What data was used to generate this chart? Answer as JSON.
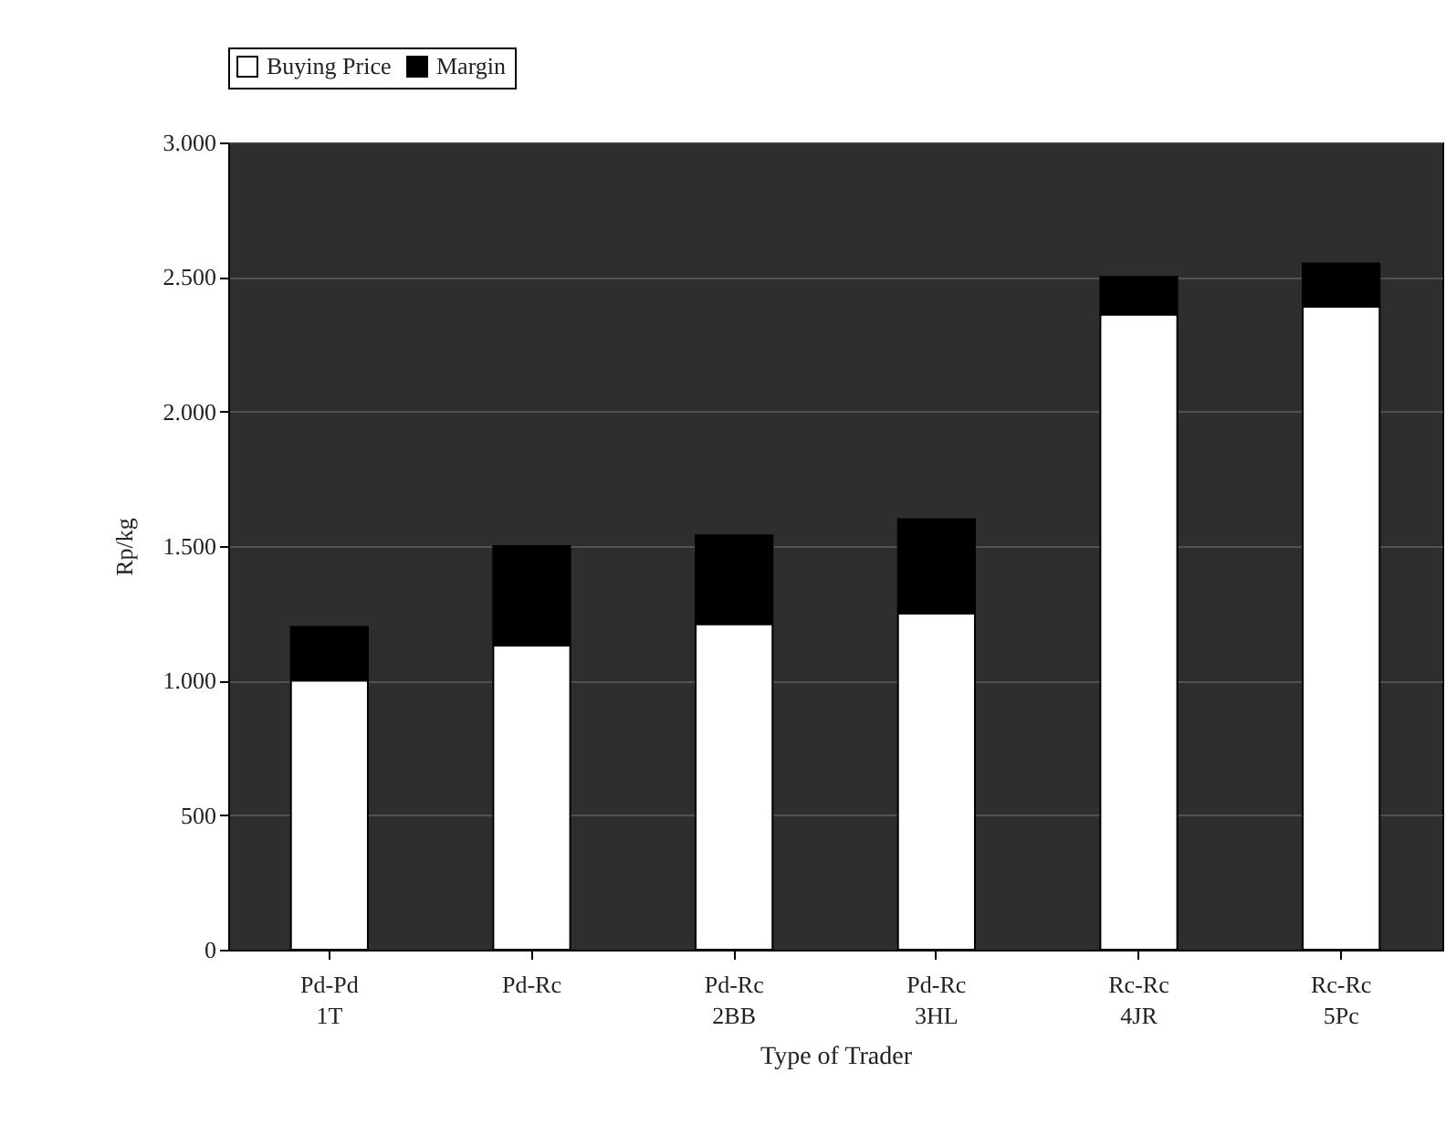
{
  "chart_data": {
    "type": "bar",
    "stacked": true,
    "xlabel": "Type of Trader",
    "ylabel": "Rp/kg",
    "categories": [
      "Pd-Pd\n1T",
      "Pd-Rc",
      "Pd-Rc\n2BB",
      "Pd-Rc\n3HL",
      "Rc-Rc\n4JR",
      "Rc-Rc\n5Pc"
    ],
    "series": [
      {
        "name": "Buying Price",
        "color": "#ffffff",
        "values": [
          1000,
          1130,
          1210,
          1250,
          2360,
          2390
        ]
      },
      {
        "name": "Margin",
        "color": "#000000",
        "values": [
          200,
          370,
          330,
          350,
          140,
          160
        ]
      }
    ],
    "ylim": [
      0,
      3000
    ],
    "yticks": [
      0,
      {
        "value": 500,
        "label": "500"
      },
      {
        "value": 1000,
        "label": "1.000"
      },
      {
        "value": 1500,
        "label": "1.500"
      },
      {
        "value": 2000,
        "label": "2.000"
      },
      {
        "value": 2500,
        "label": "2.500"
      },
      {
        "value": 3000,
        "label": "3.000"
      }
    ],
    "grid": "y",
    "legend": "top"
  }
}
